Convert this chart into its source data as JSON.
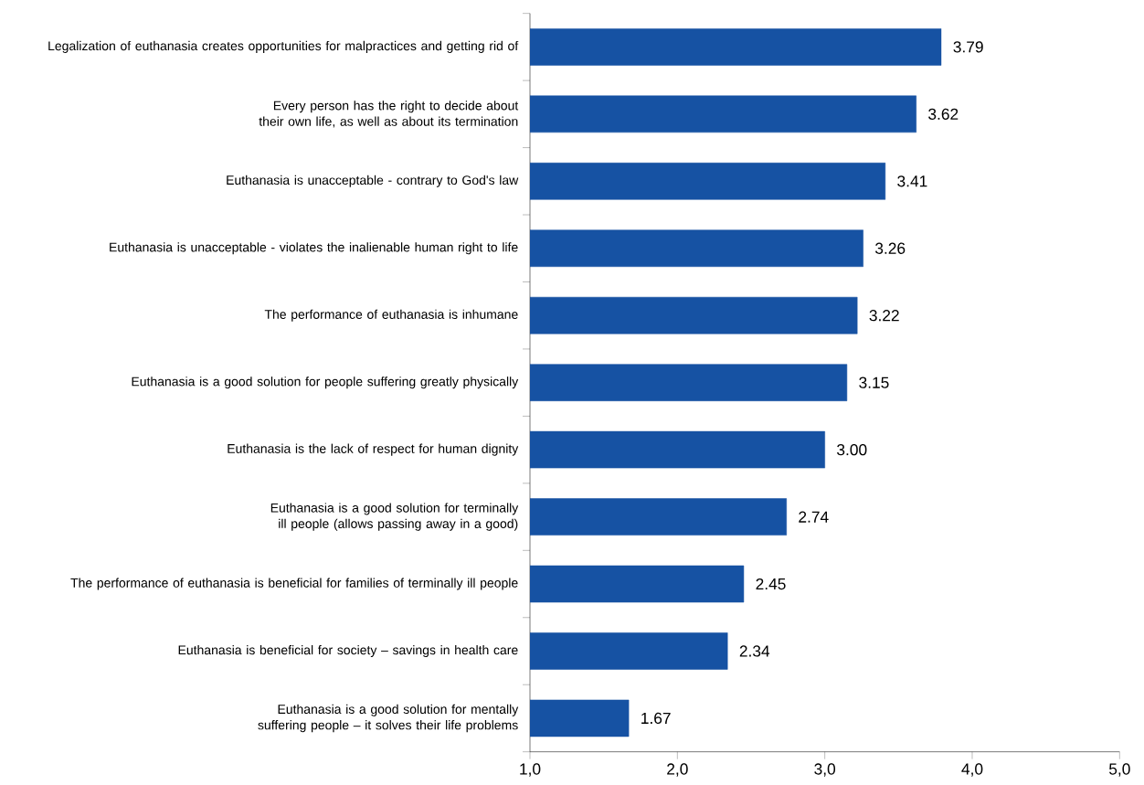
{
  "chart_data": {
    "type": "bar",
    "orientation": "horizontal",
    "categories": [
      "Legalization of euthanasia creates opportunities for malpractices and getting rid of",
      "Every person has the right to decide about their own life, as well as about its termination",
      "Euthanasia is unacceptable - contrary to God's law",
      "Euthanasia is unacceptable - violates the inalienable human right to life",
      "The performance of euthanasia is inhumane",
      "Euthanasia is a good solution for people suffering greatly physically",
      "Euthanasia is the lack of respect for human dignity",
      "Euthanasia is a good solution for terminally ill people (allows passing away in a good)",
      "The performance of euthanasia is beneficial for families of terminally ill people",
      "Euthanasia is beneficial for society – savings in health care",
      "Euthanasia is a good solution for mentally suffering people – it solves their life problems"
    ],
    "values": [
      3.79,
      3.62,
      3.41,
      3.26,
      3.22,
      3.15,
      3.0,
      2.74,
      2.45,
      2.34,
      1.67
    ],
    "value_labels": [
      "3.79",
      "3.62",
      "3.41",
      "3.26",
      "3.22",
      "3.15",
      "3.00",
      "2.74",
      "2.45",
      "2.34",
      "1.67"
    ],
    "color": "#1652a3",
    "xlim": [
      1,
      5
    ],
    "xticks": [
      {
        "value": 1,
        "label": "1,0"
      },
      {
        "value": 2,
        "label": "2,0"
      },
      {
        "value": 3,
        "label": "3,0"
      },
      {
        "value": 4,
        "label": "4,0"
      },
      {
        "value": 5,
        "label": "5,0"
      }
    ],
    "legend": false
  }
}
